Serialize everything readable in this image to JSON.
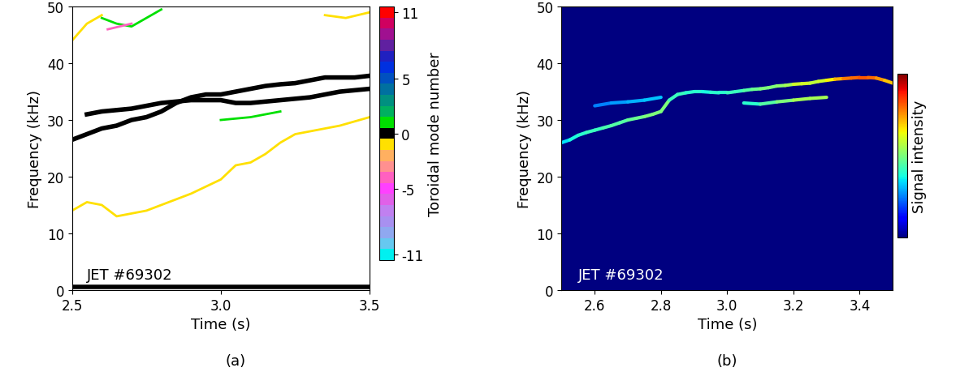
{
  "chart_data": [
    {
      "type": "line",
      "xlabel": "Time (s)",
      "ylabel": "Frequency (kHz)",
      "annotation": "JET #69302",
      "caption": "(a)",
      "xlim": [
        2.5,
        3.5
      ],
      "xticks": [
        2.5,
        3.0,
        3.5
      ],
      "ylim": [
        0,
        50
      ],
      "yticks": [
        0,
        10,
        20,
        30,
        40,
        50
      ],
      "colorbar": {
        "label": "Toroidal mode number",
        "range": [
          -11,
          11
        ],
        "ticks": [
          -11,
          -5,
          0,
          5,
          11
        ],
        "colors": [
          "#00f0f0",
          "#66c8f0",
          "#8fa8f0",
          "#a890f0",
          "#c080f0",
          "#e060e8",
          "#ff40ff",
          "#ff60c0",
          "#ff9090",
          "#ffb060",
          "#ffe000",
          "#000000",
          "#00e000",
          "#00b060",
          "#009080",
          "#0070a0",
          "#0050c0",
          "#0030e0",
          "#2020c0",
          "#6020a0",
          "#a01090",
          "#d00060",
          "#ff0000"
        ]
      },
      "series": [
        {
          "mode_number": 0,
          "x": [
            2.5,
            2.55,
            2.6,
            2.65,
            2.7,
            2.75,
            2.8,
            2.85,
            2.9,
            2.95,
            3.0,
            3.05,
            3.1,
            3.15,
            3.2,
            3.25,
            3.3,
            3.35,
            3.4,
            3.45,
            3.5
          ],
          "values": [
            26.5,
            27.5,
            28.5,
            29,
            30,
            30.5,
            31.5,
            33,
            34,
            34.5,
            34.5,
            35,
            35.5,
            36,
            36.3,
            36.5,
            37,
            37.5,
            37.5,
            37.5,
            37.8
          ]
        },
        {
          "mode_number": 0,
          "x": [
            2.55,
            2.6,
            2.7,
            2.8,
            2.9,
            3.0,
            3.05,
            3.1,
            3.2,
            3.3,
            3.4,
            3.5
          ],
          "values": [
            31,
            31.5,
            32,
            33,
            33.5,
            33.5,
            33,
            33,
            33.5,
            34,
            35,
            35.5
          ]
        },
        {
          "mode_number": -1,
          "x": [
            2.5,
            2.55,
            2.6,
            2.65,
            2.7,
            2.75,
            2.8,
            2.9,
            3.0,
            3.05,
            3.1,
            3.15,
            3.2,
            3.25,
            3.3,
            3.4,
            3.5
          ],
          "values": [
            14,
            15.5,
            15,
            13,
            13.5,
            14,
            15,
            17,
            19.5,
            22,
            22.5,
            24,
            26,
            27.5,
            28,
            29,
            30.5
          ]
        },
        {
          "mode_number": 1,
          "x": [
            3.0,
            3.1,
            3.2
          ],
          "values": [
            30,
            30.5,
            31.5
          ]
        },
        {
          "mode_number": -1,
          "x": [
            2.5,
            2.55,
            2.6
          ],
          "values": [
            44,
            47,
            48.5
          ]
        },
        {
          "mode_number": 1,
          "x": [
            2.6,
            2.65,
            2.7,
            2.75,
            2.8
          ],
          "values": [
            48,
            47,
            46.5,
            48,
            49.5
          ]
        },
        {
          "mode_number": -4,
          "x": [
            2.62,
            2.66,
            2.7
          ],
          "values": [
            46,
            46.5,
            47
          ]
        },
        {
          "mode_number": -1,
          "x": [
            3.35,
            3.42,
            3.5
          ],
          "values": [
            48.5,
            48,
            49
          ]
        },
        {
          "mode_number": 0,
          "x": [
            2.5,
            3.5
          ],
          "values": [
            0.5,
            0.5
          ]
        }
      ]
    },
    {
      "type": "heatmap",
      "xlabel": "Time (s)",
      "ylabel": "Frequency (kHz)",
      "annotation": "JET #69302",
      "caption": "(b)",
      "xlim": [
        2.5,
        3.5
      ],
      "xticks": [
        2.6,
        2.8,
        3.0,
        3.2,
        3.4
      ],
      "ylim": [
        0,
        50
      ],
      "yticks": [
        0,
        10,
        20,
        30,
        40,
        50
      ],
      "colorbar": {
        "label": "Signal intensity",
        "range": [
          0,
          1
        ],
        "ticks": []
      },
      "series": [
        {
          "x": [
            2.5,
            2.525,
            2.55,
            2.575,
            2.6,
            2.625,
            2.65,
            2.675,
            2.7,
            2.725,
            2.75,
            2.775,
            2.8,
            2.825,
            2.85,
            2.875,
            2.9,
            2.925,
            2.95,
            2.975,
            3.0,
            3.025,
            3.05,
            3.075,
            3.1,
            3.125,
            3.15,
            3.175,
            3.2,
            3.225,
            3.25,
            3.275,
            3.3,
            3.325,
            3.35,
            3.375,
            3.4,
            3.425,
            3.45,
            3.475,
            3.5
          ],
          "values": [
            26.0,
            26.5,
            27.3,
            27.8,
            28.2,
            28.6,
            29.0,
            29.5,
            30.0,
            30.3,
            30.6,
            31.0,
            31.5,
            33.5,
            34.5,
            34.8,
            35.0,
            35.0,
            34.9,
            34.8,
            34.8,
            35.0,
            35.2,
            35.4,
            35.5,
            35.7,
            36.0,
            36.1,
            36.3,
            36.4,
            36.5,
            36.8,
            37.0,
            37.2,
            37.3,
            37.4,
            37.5,
            37.5,
            37.4,
            37.0,
            36.5
          ],
          "intensity": [
            0.35,
            0.38,
            0.4,
            0.42,
            0.42,
            0.44,
            0.45,
            0.45,
            0.47,
            0.48,
            0.5,
            0.5,
            0.5,
            0.42,
            0.42,
            0.4,
            0.4,
            0.38,
            0.4,
            0.4,
            0.42,
            0.42,
            0.45,
            0.48,
            0.5,
            0.5,
            0.52,
            0.55,
            0.6,
            0.6,
            0.58,
            0.6,
            0.65,
            0.72,
            0.78,
            0.8,
            0.82,
            0.8,
            0.75,
            0.7,
            0.6
          ]
        },
        {
          "x": [
            2.6,
            2.65,
            2.7,
            2.75,
            2.8
          ],
          "values": [
            32.5,
            33.0,
            33.2,
            33.5,
            34.0
          ],
          "intensity": [
            0.25,
            0.28,
            0.3,
            0.32,
            0.35
          ]
        },
        {
          "x": [
            3.05,
            3.1,
            3.15,
            3.2,
            3.25,
            3.3
          ],
          "values": [
            33.0,
            32.8,
            33.2,
            33.5,
            33.8,
            34.0
          ],
          "intensity": [
            0.4,
            0.45,
            0.5,
            0.55,
            0.55,
            0.5
          ]
        }
      ]
    }
  ]
}
